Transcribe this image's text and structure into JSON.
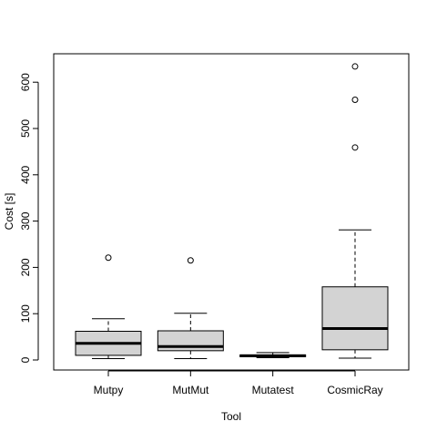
{
  "chart_data": {
    "type": "box",
    "xlabel": "Tool",
    "ylabel": "Cost [s]",
    "ylim": [
      -20,
      645
    ],
    "yticks": [
      0,
      100,
      200,
      300,
      400,
      500,
      600
    ],
    "grid": false,
    "box_fill": "#d3d3d3",
    "categories": [
      "Mutpy",
      "MutMut",
      "Mutatest",
      "CosmicRay"
    ],
    "boxes": [
      {
        "name": "Mutpy",
        "whisker_low": 3,
        "q1": 10,
        "median": 36,
        "q3": 62,
        "whisker_high": 89,
        "outliers": [
          221
        ]
      },
      {
        "name": "MutMut",
        "whisker_low": 3,
        "q1": 20,
        "median": 29,
        "q3": 63,
        "whisker_high": 101,
        "outliers": [
          215
        ]
      },
      {
        "name": "Mutatest",
        "whisker_low": 5,
        "q1": 7,
        "median": 9,
        "q3": 11,
        "whisker_high": 16,
        "outliers": []
      },
      {
        "name": "CosmicRay",
        "whisker_low": 4,
        "q1": 22,
        "median": 68,
        "q3": 158,
        "whisker_high": 281,
        "outliers": [
          459,
          562,
          634
        ]
      }
    ]
  }
}
